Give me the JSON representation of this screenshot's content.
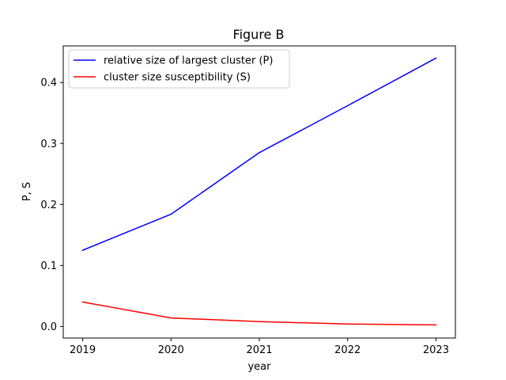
{
  "chart_data": {
    "type": "line",
    "title": "Figure B",
    "xlabel": "year",
    "ylabel": "P, S",
    "x": [
      2019,
      2020,
      2021,
      2022,
      2023
    ],
    "xlim": [
      2018.78,
      2023.22
    ],
    "ylim": [
      -0.019,
      0.46
    ],
    "x_ticks": [
      "2019",
      "2020",
      "2021",
      "2022",
      "2023"
    ],
    "y_ticks": [
      0.0,
      0.1,
      0.2,
      0.3,
      0.4
    ],
    "y_tick_labels": [
      "0.0",
      "0.1",
      "0.2",
      "0.3",
      "0.4"
    ],
    "grid": false,
    "legend_position": "top-left",
    "series": [
      {
        "name": "relative size of largest cluster (P)",
        "color": "#0000ff",
        "values": [
          0.125,
          0.184,
          0.285,
          0.362,
          0.44
        ]
      },
      {
        "name": "cluster size susceptibility (S)",
        "color": "#ff0000",
        "values": [
          0.04,
          0.014,
          0.008,
          0.004,
          0.0025
        ]
      }
    ]
  }
}
